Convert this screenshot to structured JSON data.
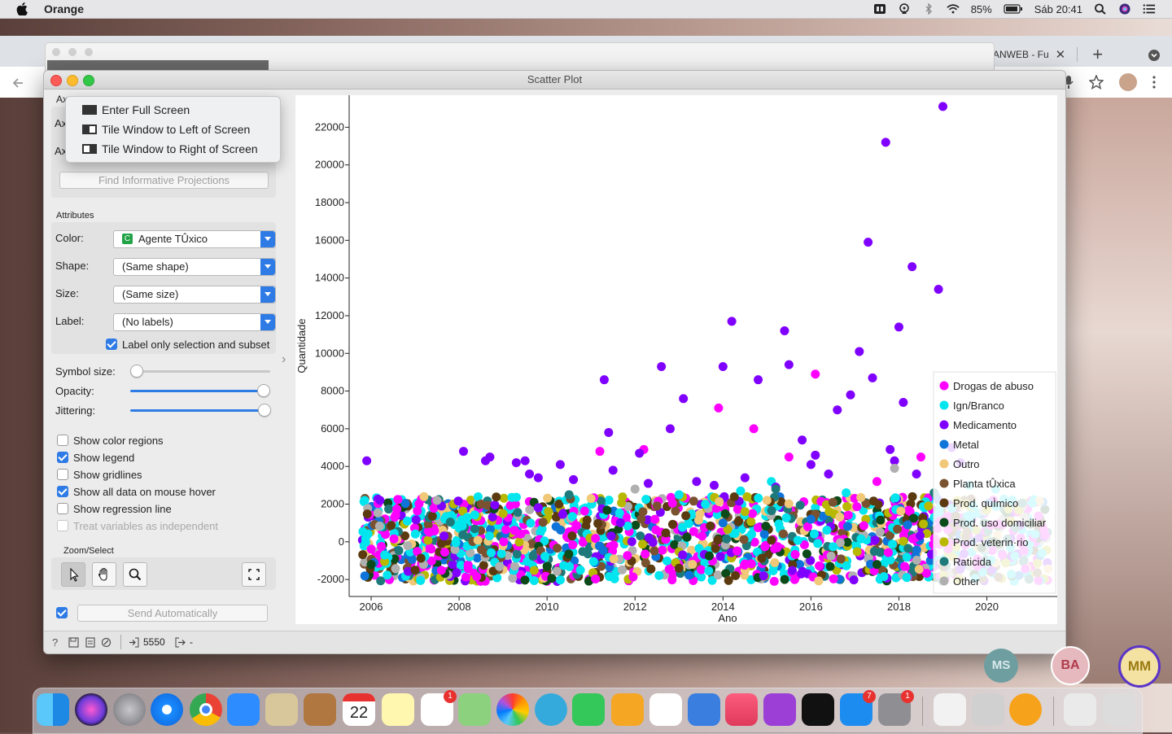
{
  "menubar": {
    "app_name": "Orange",
    "battery": "85%",
    "datetime": "Sáb 20:41"
  },
  "browser": {
    "tab_label": "ANWEB - Fu"
  },
  "window": {
    "title": "Scatter Plot"
  },
  "popup_menu": {
    "items": [
      "Enter Full Screen",
      "Tile Window to Left of Screen",
      "Tile Window to Right of Screen"
    ]
  },
  "axes_section": {
    "title_partial": "Ax",
    "axis_x_partial": "Ax",
    "axis_y_partial": "Ax",
    "find_button": "Find Informative Projections"
  },
  "attributes": {
    "title": "Attributes",
    "color_label": "Color:",
    "color_badge": "C",
    "color_value": "Agente TÛxico",
    "shape_label": "Shape:",
    "shape_value": "(Same shape)",
    "size_label": "Size:",
    "size_value": "(Same size)",
    "label_label": "Label:",
    "label_value": "(No labels)",
    "label_only_selection": "Label only selection and subset"
  },
  "sliders": {
    "symbol_size_label": "Symbol size:",
    "symbol_size_value": 0.0,
    "opacity_label": "Opacity:",
    "opacity_value": 1.0,
    "jittering_label": "Jittering:",
    "jittering_value": 1.0
  },
  "options": [
    {
      "label": "Show color regions",
      "checked": false,
      "enabled": true
    },
    {
      "label": "Show legend",
      "checked": true,
      "enabled": true
    },
    {
      "label": "Show gridlines",
      "checked": false,
      "enabled": true
    },
    {
      "label": "Show all data on mouse hover",
      "checked": true,
      "enabled": true
    },
    {
      "label": "Show regression line",
      "checked": false,
      "enabled": true
    },
    {
      "label": "Treat variables as independent",
      "checked": false,
      "enabled": false
    }
  ],
  "zoom": {
    "title": "Zoom/Select"
  },
  "send": {
    "label": "Send Automatically",
    "checked": true
  },
  "status": {
    "count": "5550",
    "output": "-"
  },
  "colors": {
    "accent": "#2f7be6"
  },
  "chart_data": {
    "type": "scatter",
    "xlabel": "Ano",
    "ylabel": "Quantidade",
    "xlim": [
      2005.5,
      2021.6
    ],
    "ylim": [
      -2900,
      23700
    ],
    "xticks": [
      2006,
      2008,
      2010,
      2012,
      2014,
      2016,
      2018,
      2020
    ],
    "yticks": [
      -2000,
      0,
      2000,
      4000,
      6000,
      8000,
      10000,
      12000,
      14000,
      16000,
      18000,
      20000,
      22000
    ],
    "legend_placement": "bottom-right",
    "grid": false,
    "series": [
      {
        "name": "Drogas de abuso",
        "color": "#ff00ff",
        "points": [
          [
            2011.2,
            4800
          ],
          [
            2012.2,
            4900
          ],
          [
            2013.9,
            7100
          ],
          [
            2014.7,
            6000
          ],
          [
            2015.5,
            4500
          ],
          [
            2016.1,
            8900
          ],
          [
            2018.5,
            4500
          ],
          [
            2017.5,
            3200
          ]
        ]
      },
      {
        "name": "Ign/Branco",
        "color": "#00e5ee",
        "points": [
          [
            2014.4,
            2700
          ],
          [
            2015.1,
            3200
          ],
          [
            2016.8,
            2600
          ],
          [
            2019.6,
            3000
          ],
          [
            2020.2,
            2800
          ],
          [
            2013.0,
            2500
          ]
        ]
      },
      {
        "name": "Medicamento",
        "color": "#8000ff",
        "points": [
          [
            2005.9,
            4300
          ],
          [
            2006.2,
            2200
          ],
          [
            2007.6,
            1900
          ],
          [
            2008.1,
            4800
          ],
          [
            2008.6,
            4300
          ],
          [
            2008.7,
            4500
          ],
          [
            2009.3,
            4200
          ],
          [
            2009.5,
            4300
          ],
          [
            2009.6,
            3600
          ],
          [
            2009.8,
            3400
          ],
          [
            2010.3,
            4100
          ],
          [
            2010.6,
            3300
          ],
          [
            2011.3,
            8600
          ],
          [
            2011.4,
            5800
          ],
          [
            2011.5,
            3800
          ],
          [
            2012.1,
            4700
          ],
          [
            2012.3,
            3100
          ],
          [
            2012.6,
            9300
          ],
          [
            2012.8,
            6000
          ],
          [
            2013.1,
            7600
          ],
          [
            2013.4,
            3200
          ],
          [
            2013.8,
            3000
          ],
          [
            2014.0,
            9300
          ],
          [
            2014.2,
            11700
          ],
          [
            2014.5,
            3400
          ],
          [
            2014.8,
            8600
          ],
          [
            2015.2,
            2900
          ],
          [
            2015.4,
            11200
          ],
          [
            2015.5,
            9400
          ],
          [
            2015.8,
            5400
          ],
          [
            2016.0,
            4100
          ],
          [
            2016.1,
            4600
          ],
          [
            2016.4,
            3600
          ],
          [
            2016.6,
            7000
          ],
          [
            2016.9,
            7800
          ],
          [
            2017.1,
            10100
          ],
          [
            2017.3,
            15900
          ],
          [
            2017.4,
            8700
          ],
          [
            2017.7,
            21200
          ],
          [
            2017.8,
            4900
          ],
          [
            2017.9,
            4300
          ],
          [
            2018.0,
            11400
          ],
          [
            2018.1,
            7400
          ],
          [
            2018.3,
            14600
          ],
          [
            2018.4,
            3600
          ],
          [
            2018.9,
            13400
          ],
          [
            2019.0,
            23100
          ],
          [
            2019.2,
            5000
          ],
          [
            2019.4,
            4200
          ]
        ]
      },
      {
        "name": "Metal",
        "color": "#0f74d9",
        "points": [
          [
            2014.0,
            1000
          ],
          [
            2016.0,
            1200
          ],
          [
            2018.2,
            900
          ]
        ]
      },
      {
        "name": "Outro",
        "color": "#f0c878",
        "points": [
          [
            2007.2,
            2400
          ],
          [
            2011.0,
            2300
          ],
          [
            2015.0,
            2200
          ]
        ]
      },
      {
        "name": "Planta tÛxica",
        "color": "#7a5230",
        "points": [
          [
            2008.5,
            2000
          ],
          [
            2012.5,
            1900
          ],
          [
            2016.5,
            2100
          ]
        ]
      },
      {
        "name": "Prod. quÌmico",
        "color": "#5b3a10",
        "points": [
          [
            2007.0,
            -1500
          ],
          [
            2013.0,
            -1400
          ],
          [
            2019.0,
            -1300
          ]
        ]
      },
      {
        "name": "Prod. uso domiciliar",
        "color": "#0c4a1a",
        "points": [
          [
            2006.0,
            -1200
          ],
          [
            2010.0,
            -1300
          ],
          [
            2017.5,
            -1200
          ]
        ]
      },
      {
        "name": "Prod. veterin·rio",
        "color": "#b8b800",
        "points": [
          [
            2009.0,
            1500
          ],
          [
            2014.5,
            1600
          ],
          [
            2020.0,
            1700
          ]
        ]
      },
      {
        "name": "Raticida",
        "color": "#1e7a7a",
        "points": [
          [
            2015.2,
            2800
          ],
          [
            2010.5,
            2500
          ],
          [
            2018.8,
            2600
          ]
        ]
      },
      {
        "name": "Other",
        "color": "#b0b0b0",
        "points": [
          [
            2017.9,
            3900
          ],
          [
            2012.0,
            2800
          ],
          [
            2007.5,
            2200
          ]
        ]
      }
    ]
  }
}
